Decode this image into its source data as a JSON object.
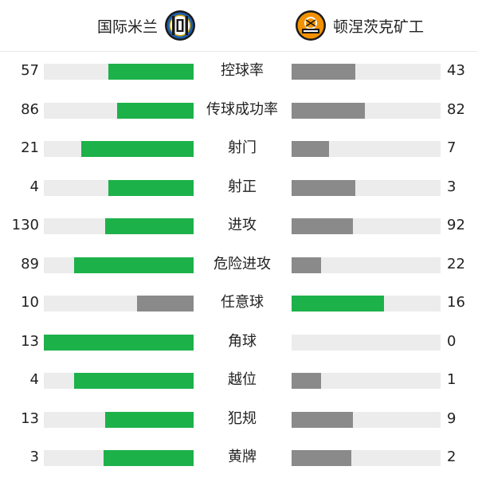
{
  "home_team": {
    "name": "国际米兰",
    "logo_icon": "inter-milan-crest-icon"
  },
  "away_team": {
    "name": "顿涅茨克矿工",
    "logo_icon": "shakhtar-donetsk-crest-icon"
  },
  "colors": {
    "win": "#1db14a",
    "lose": "#8a8a8a",
    "track": "#ececec"
  },
  "stats": [
    {
      "label": "控球率",
      "home": "57",
      "away": "43",
      "home_fill": 0.57,
      "away_fill": 0.43,
      "home_win": true,
      "away_win": false
    },
    {
      "label": "传球成功率",
      "home": "86",
      "away": "82",
      "home_fill": 0.51,
      "away_fill": 0.49,
      "home_win": true,
      "away_win": false
    },
    {
      "label": "射门",
      "home": "21",
      "away": "7",
      "home_fill": 0.75,
      "away_fill": 0.25,
      "home_win": true,
      "away_win": false
    },
    {
      "label": "射正",
      "home": "4",
      "away": "3",
      "home_fill": 0.57,
      "away_fill": 0.43,
      "home_win": true,
      "away_win": false
    },
    {
      "label": "进攻",
      "home": "130",
      "away": "92",
      "home_fill": 0.59,
      "away_fill": 0.41,
      "home_win": true,
      "away_win": false
    },
    {
      "label": "危险进攻",
      "home": "89",
      "away": "22",
      "home_fill": 0.8,
      "away_fill": 0.2,
      "home_win": true,
      "away_win": false
    },
    {
      "label": "任意球",
      "home": "10",
      "away": "16",
      "home_fill": 0.38,
      "away_fill": 0.62,
      "home_win": false,
      "away_win": true
    },
    {
      "label": "角球",
      "home": "13",
      "away": "0",
      "home_fill": 1.0,
      "away_fill": 0.0,
      "home_win": true,
      "away_win": false
    },
    {
      "label": "越位",
      "home": "4",
      "away": "1",
      "home_fill": 0.8,
      "away_fill": 0.2,
      "home_win": true,
      "away_win": false
    },
    {
      "label": "犯规",
      "home": "13",
      "away": "9",
      "home_fill": 0.59,
      "away_fill": 0.41,
      "home_win": true,
      "away_win": false
    },
    {
      "label": "黄牌",
      "home": "3",
      "away": "2",
      "home_fill": 0.6,
      "away_fill": 0.4,
      "home_win": true,
      "away_win": false
    }
  ]
}
